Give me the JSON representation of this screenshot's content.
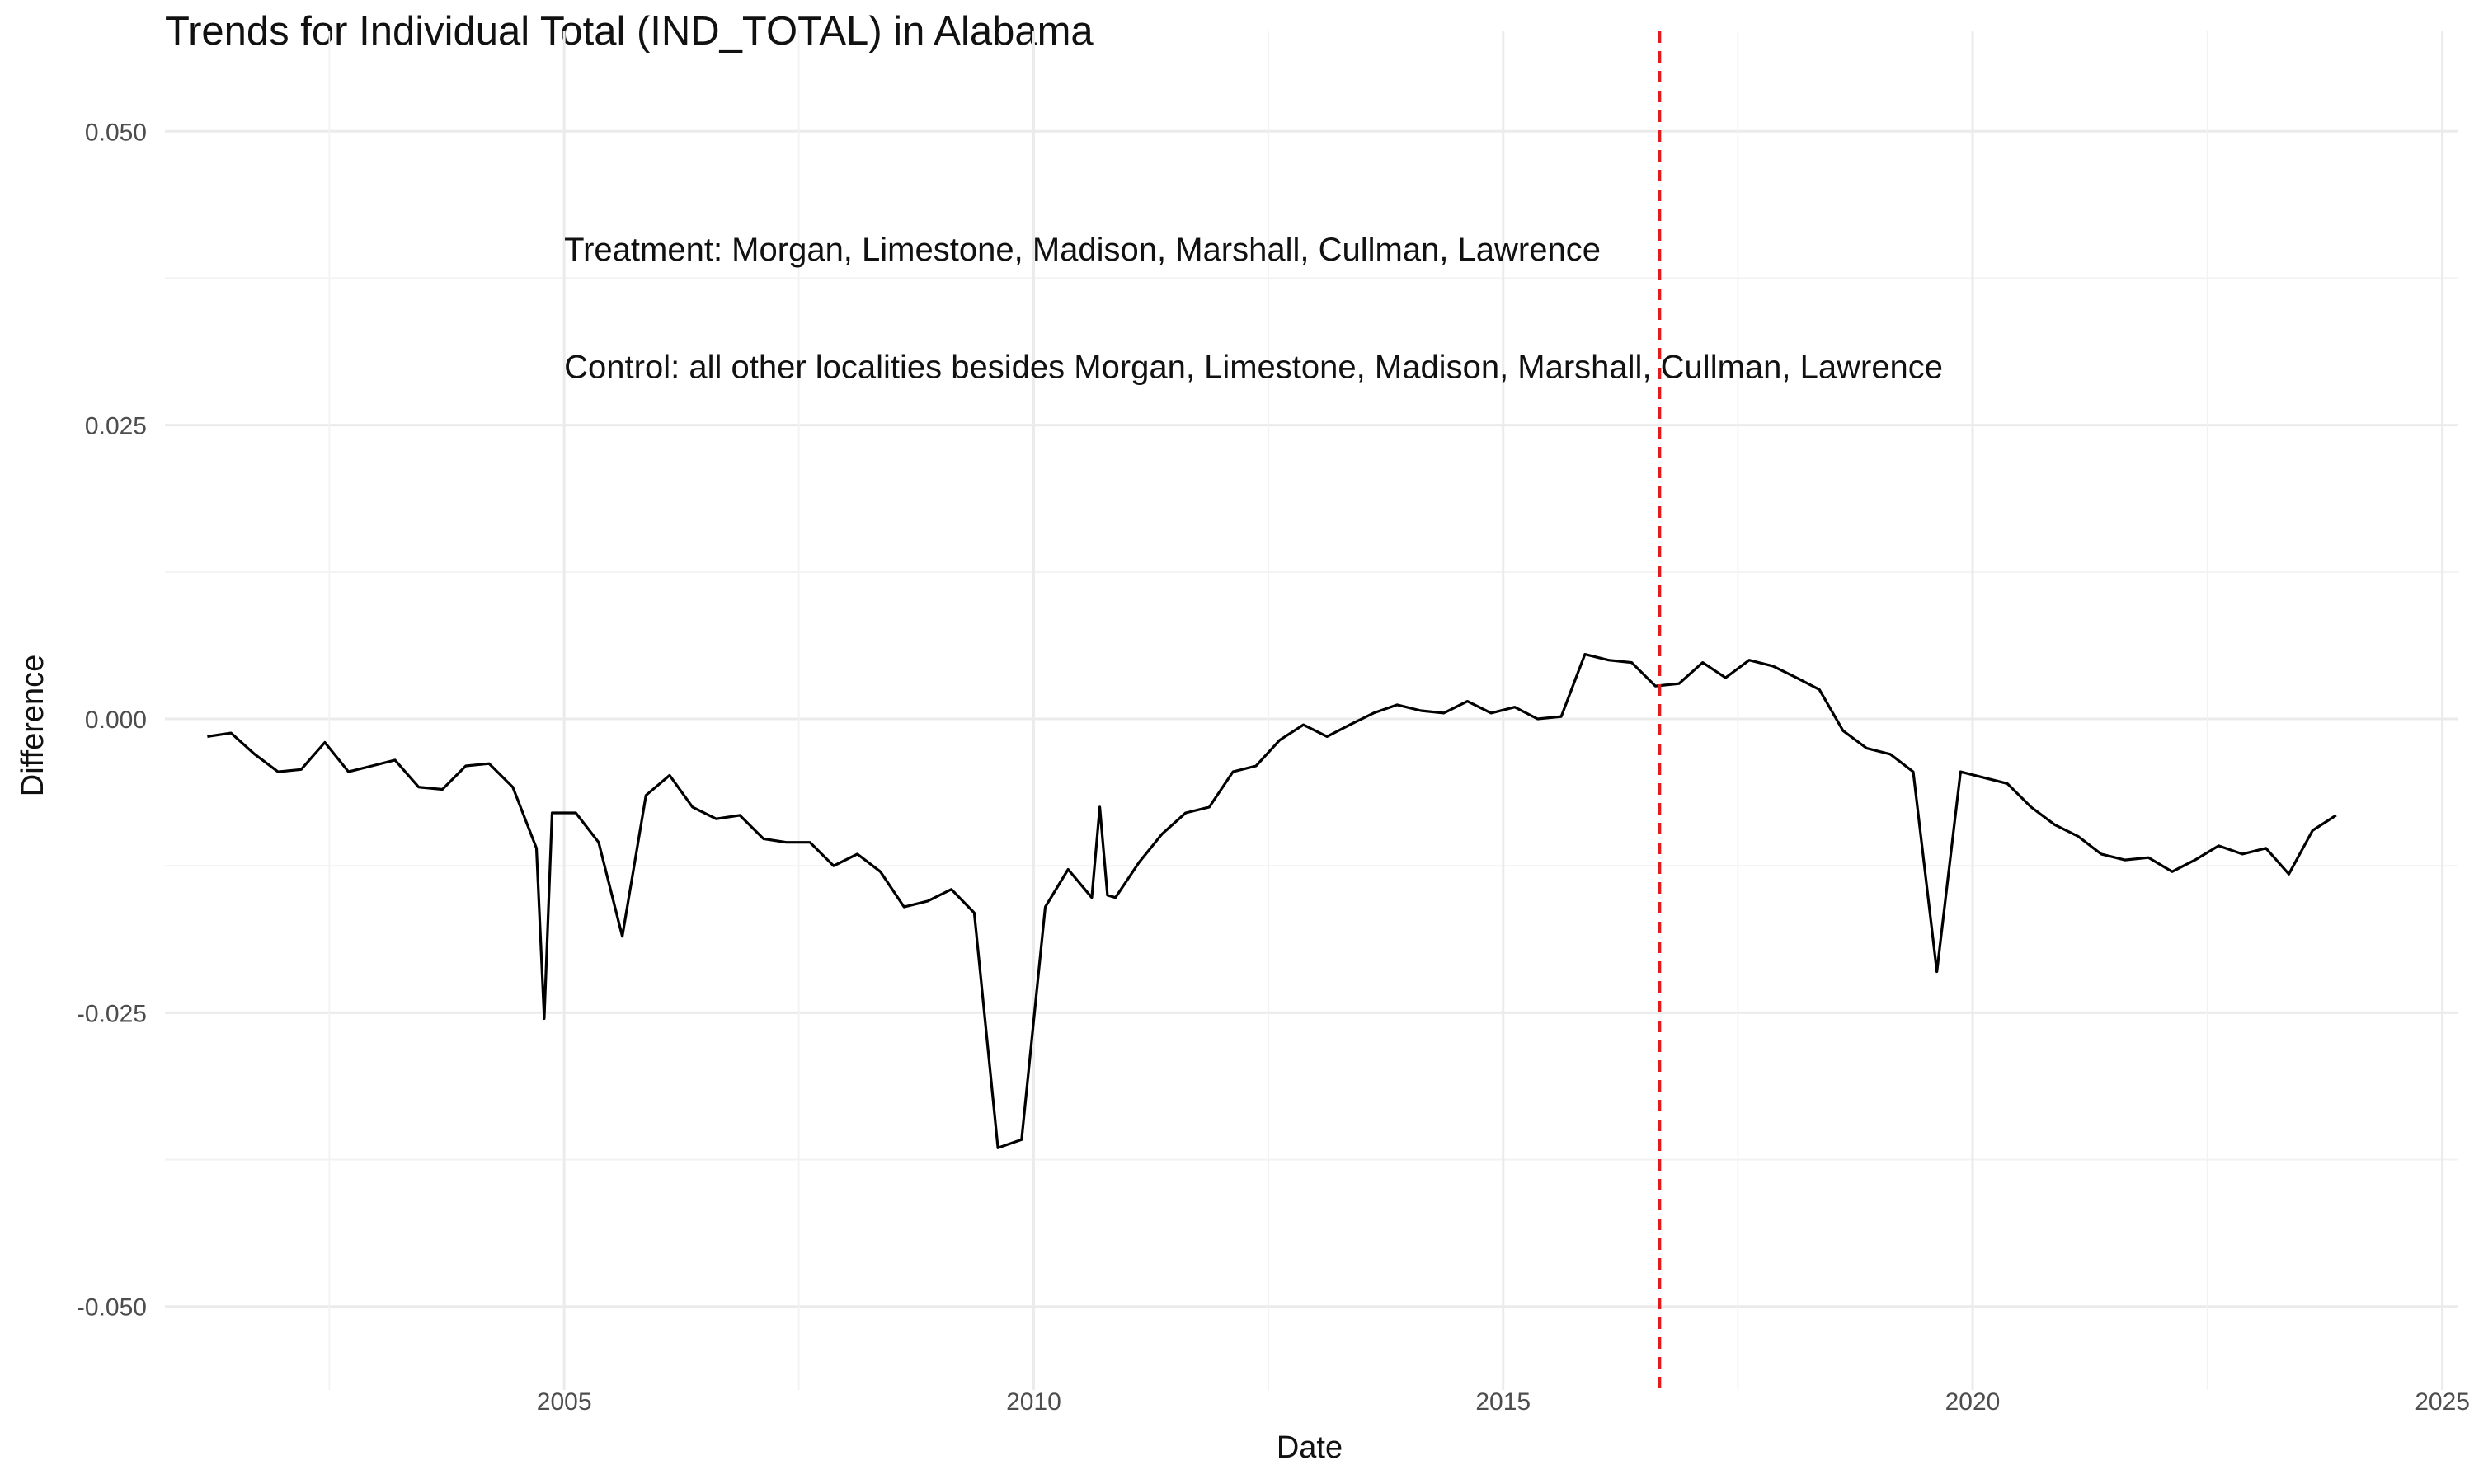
{
  "chart_data": {
    "type": "line",
    "title": "Trends for Individual Total (IND_TOTAL) in Alabama",
    "xlabel": "Date",
    "ylabel": "Difference",
    "xlim": [
      "2000-10-01",
      "2025-03-01"
    ],
    "ylim": [
      -0.055,
      0.055
    ],
    "x_ticks": [
      "2005",
      "2010",
      "2015",
      "2020",
      "2025"
    ],
    "y_ticks": [
      "0.050",
      "0.025",
      "0.000",
      "-0.025",
      "-0.050"
    ],
    "grid": true,
    "line_color": "#000000",
    "vline": {
      "x": "2016-09-01",
      "color": "#e41a1c",
      "style": "dashed"
    },
    "annotations": [
      "Treatment: Morgan, Limestone, Madison, Marshall, Cullman, Lawrence",
      "Control: all other localities besides Morgan, Limestone, Madison, Marshall, Cullman, Lawrence"
    ],
    "series": [
      {
        "x": [
          "2001-03",
          "2001-06",
          "2001-09",
          "2001-12",
          "2002-03",
          "2002-06",
          "2002-09",
          "2002-12",
          "2003-03",
          "2003-06",
          "2003-09",
          "2003-12",
          "2004-03",
          "2004-06",
          "2004-09",
          "2004-10",
          "2004-11",
          "2005-02",
          "2005-05",
          "2005-08",
          "2005-11",
          "2006-02",
          "2006-05",
          "2006-08",
          "2006-11",
          "2007-02",
          "2007-05",
          "2007-08",
          "2007-11",
          "2008-02",
          "2008-05",
          "2008-08",
          "2008-11",
          "2009-02",
          "2009-05",
          "2009-08",
          "2009-11",
          "2010-02",
          "2010-05",
          "2010-08",
          "2010-09",
          "2010-10",
          "2010-11",
          "2011-02",
          "2011-05",
          "2011-08",
          "2011-11",
          "2012-02",
          "2012-05",
          "2012-08",
          "2012-11",
          "2013-02",
          "2013-05",
          "2013-08",
          "2013-11",
          "2014-02",
          "2014-05",
          "2014-08",
          "2014-11",
          "2015-02",
          "2015-05",
          "2015-08",
          "2015-11",
          "2016-02",
          "2016-05",
          "2016-08",
          "2016-11",
          "2017-02",
          "2017-05",
          "2017-08",
          "2017-11",
          "2018-02",
          "2018-05",
          "2018-08",
          "2018-11",
          "2019-02",
          "2019-05",
          "2019-08",
          "2019-11",
          "2020-02",
          "2020-05",
          "2020-08",
          "2020-11",
          "2021-02",
          "2021-05",
          "2021-08",
          "2021-11",
          "2022-02",
          "2022-05",
          "2022-08",
          "2022-11",
          "2023-02",
          "2023-05",
          "2023-08",
          "2023-11"
        ],
        "y": [
          -0.0015,
          -0.0012,
          -0.003,
          -0.0045,
          -0.0043,
          -0.002,
          -0.0045,
          -0.004,
          -0.0035,
          -0.0058,
          -0.006,
          -0.004,
          -0.0038,
          -0.0058,
          -0.011,
          -0.0255,
          -0.008,
          -0.008,
          -0.0105,
          -0.0185,
          -0.0065,
          -0.0048,
          -0.0075,
          -0.0085,
          -0.0082,
          -0.0102,
          -0.0105,
          -0.0105,
          -0.0125,
          -0.0115,
          -0.013,
          -0.016,
          -0.0155,
          -0.0145,
          -0.0165,
          -0.0365,
          -0.0358,
          -0.016,
          -0.0128,
          -0.0152,
          -0.0075,
          -0.015,
          -0.0152,
          -0.0122,
          -0.0098,
          -0.008,
          -0.0075,
          -0.0045,
          -0.004,
          -0.0018,
          -0.0005,
          -0.0015,
          -0.0005,
          0.0005,
          0.0012,
          0.0007,
          0.0005,
          0.0015,
          0.0005,
          0.001,
          0.0,
          0.0002,
          0.0055,
          0.005,
          0.0048,
          0.0028,
          0.003,
          0.0048,
          0.0035,
          0.005,
          0.0045,
          0.0035,
          0.0025,
          -0.001,
          -0.0025,
          -0.003,
          -0.0045,
          -0.0215,
          -0.0045,
          -0.005,
          -0.0055,
          -0.0075,
          -0.009,
          -0.01,
          -0.0115,
          -0.012,
          -0.0118,
          -0.013,
          -0.012,
          -0.0108,
          -0.0115,
          -0.011,
          -0.0132,
          -0.0095,
          -0.0082
        ]
      }
    ]
  }
}
